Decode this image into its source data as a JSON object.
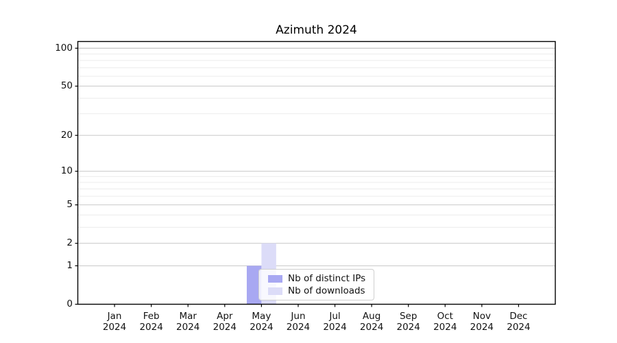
{
  "figure": {
    "title": "Azimuth 2024"
  },
  "chart_data": {
    "type": "bar",
    "title": "Azimuth 2024",
    "categories": [
      "Jan 2024",
      "Feb 2024",
      "Mar 2024",
      "Apr 2024",
      "May 2024",
      "Jun 2024",
      "Jul 2024",
      "Aug 2024",
      "Sep 2024",
      "Oct 2024",
      "Nov 2024",
      "Dec 2024"
    ],
    "series": [
      {
        "name": "Nb of distinct IPs",
        "color": "#a8a8f2",
        "values": [
          0,
          0,
          0,
          0,
          1,
          0,
          0,
          0,
          0,
          0,
          0,
          0
        ]
      },
      {
        "name": "Nb of downloads",
        "color": "#dcdcf8",
        "values": [
          0,
          0,
          0,
          0,
          2,
          0,
          0,
          0,
          0,
          0,
          0,
          0
        ]
      }
    ],
    "xlabel": "",
    "ylabel": "",
    "yscale": "log1p",
    "ylim": [
      0,
      113
    ],
    "yticks_major": [
      0,
      1,
      2,
      5,
      10,
      20,
      50,
      100
    ],
    "yticks_minor": [
      3,
      4,
      6,
      7,
      8,
      9,
      30,
      40,
      60,
      70,
      80,
      90
    ],
    "grid": "both",
    "legend": {
      "position": "inside-lower-center",
      "labels": [
        "Nb of distinct IPs",
        "Nb of downloads"
      ]
    }
  }
}
